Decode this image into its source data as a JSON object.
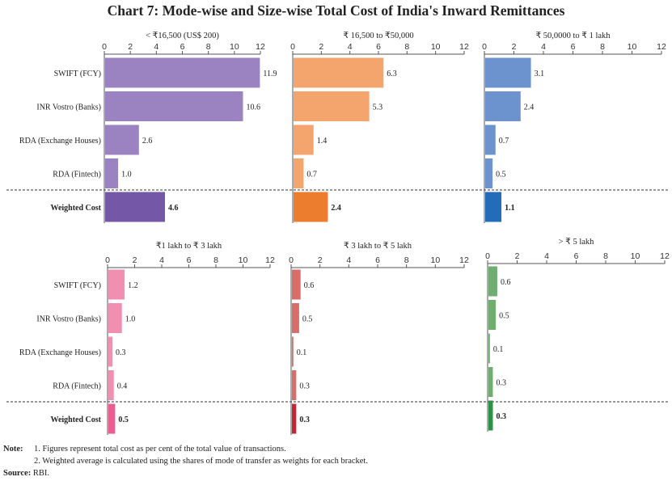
{
  "title": "Chart 7: Mode-wise and Size-wise Total Cost of India's Inward Remittances",
  "chart_data": [
    {
      "type": "bar",
      "orientation": "horizontal",
      "title": "< ₹16,500 (US$ 200)",
      "categories": [
        "SWIFT (FCY)",
        "INR Vostro (Banks)",
        "RDA (Exchange Houses)",
        "RDA (Fintech)",
        "Weighted Cost"
      ],
      "values": [
        11.9,
        10.6,
        2.6,
        1.0,
        4.6
      ],
      "value_labels": [
        "11.9",
        "10.6",
        "2.6",
        "1.0",
        "4.6"
      ],
      "xlim": [
        0,
        12
      ],
      "xticks": [
        "0",
        "2",
        "4",
        "6",
        "8",
        "10",
        "12"
      ],
      "colors": {
        "bar": "#9a83c0",
        "weighted": "#7457a6"
      }
    },
    {
      "type": "bar",
      "orientation": "horizontal",
      "title": "₹ 16,500 to ₹50,000",
      "categories": [
        "SWIFT (FCY)",
        "INR Vostro (Banks)",
        "RDA (Exchange Houses)",
        "RDA (Fintech)",
        "Weighted Cost"
      ],
      "values": [
        6.3,
        5.3,
        1.4,
        0.7,
        2.4
      ],
      "value_labels": [
        "6.3",
        "5.3",
        "1.4",
        "0.7",
        "2.4"
      ],
      "xlim": [
        0,
        12
      ],
      "xticks": [
        "0",
        "2",
        "4",
        "6",
        "8",
        "10",
        "12"
      ],
      "colors": {
        "bar": "#f3a56d",
        "weighted": "#ec7d2f"
      }
    },
    {
      "type": "bar",
      "orientation": "horizontal",
      "title": "₹ 50,0000 to ₹ 1 lakh",
      "categories": [
        "SWIFT (FCY)",
        "INR Vostro (Banks)",
        "RDA (Exchange Houses)",
        "RDA (Fintech)",
        "Weighted Cost"
      ],
      "values": [
        3.1,
        2.4,
        0.7,
        0.5,
        1.1
      ],
      "value_labels": [
        "3.1",
        "2.4",
        "0.7",
        "0.5",
        "1.1"
      ],
      "xlim": [
        0,
        12
      ],
      "xticks": [
        "0",
        "2",
        "4",
        "6",
        "8",
        "10",
        "12"
      ],
      "colors": {
        "bar": "#6d93cf",
        "weighted": "#236cb8"
      }
    },
    {
      "type": "bar",
      "orientation": "horizontal",
      "title": "₹1 lakh to ₹ 3 lakh",
      "categories": [
        "SWIFT (FCY)",
        "INR Vostro (Banks)",
        "RDA (Exchange Houses)",
        "RDA (Fintech)",
        "Weighted Cost"
      ],
      "values": [
        1.2,
        1.0,
        0.3,
        0.4,
        0.5
      ],
      "value_labels": [
        "1.2",
        "1.0",
        "0.3",
        "0.4",
        "0.5"
      ],
      "xlim": [
        0,
        12
      ],
      "xticks": [
        "0",
        "2",
        "4",
        "6",
        "8",
        "10",
        "12"
      ],
      "colors": {
        "bar": "#f18fb0",
        "weighted": "#ec5e92"
      }
    },
    {
      "type": "bar",
      "orientation": "horizontal",
      "title": "₹ 3 lakh to ₹ 5 lakh",
      "categories": [
        "SWIFT (FCY)",
        "INR Vostro (Banks)",
        "RDA (Exchange Houses)",
        "RDA (Fintech)",
        "Weighted Cost"
      ],
      "values": [
        0.6,
        0.5,
        0.1,
        0.3,
        0.3
      ],
      "value_labels": [
        "0.6",
        "0.5",
        "0.1",
        "0.3",
        "0.3"
      ],
      "xlim": [
        0,
        12
      ],
      "xticks": [
        "0",
        "2",
        "4",
        "6",
        "8",
        "10",
        "12"
      ],
      "colors": {
        "bar": "#da6d6a",
        "weighted": "#c92431"
      }
    },
    {
      "type": "bar",
      "orientation": "horizontal",
      "title": "> ₹ 5 lakh",
      "categories": [
        "SWIFT (FCY)",
        "INR Vostro (Banks)",
        "RDA (Exchange Houses)",
        "RDA (Fintech)",
        "Weighted Cost"
      ],
      "values": [
        0.6,
        0.5,
        0.1,
        0.3,
        0.3
      ],
      "value_labels": [
        "0.6",
        "0.5",
        "0.1",
        "0.3",
        "0.3"
      ],
      "xlim": [
        0,
        12
      ],
      "xticks": [
        "0",
        "2",
        "4",
        "6",
        "8",
        "10",
        "12"
      ],
      "colors": {
        "bar": "#6fae70",
        "weighted": "#2f9147"
      }
    }
  ],
  "notes": {
    "label": "Note:",
    "lines": [
      "1. Figures represent total cost as per cent of the total value of transactions.",
      "2. Weighted average is calculated using the shares of mode of transfer as weights for each bracket."
    ],
    "source_label": "Source:",
    "source_text": "RBI."
  }
}
